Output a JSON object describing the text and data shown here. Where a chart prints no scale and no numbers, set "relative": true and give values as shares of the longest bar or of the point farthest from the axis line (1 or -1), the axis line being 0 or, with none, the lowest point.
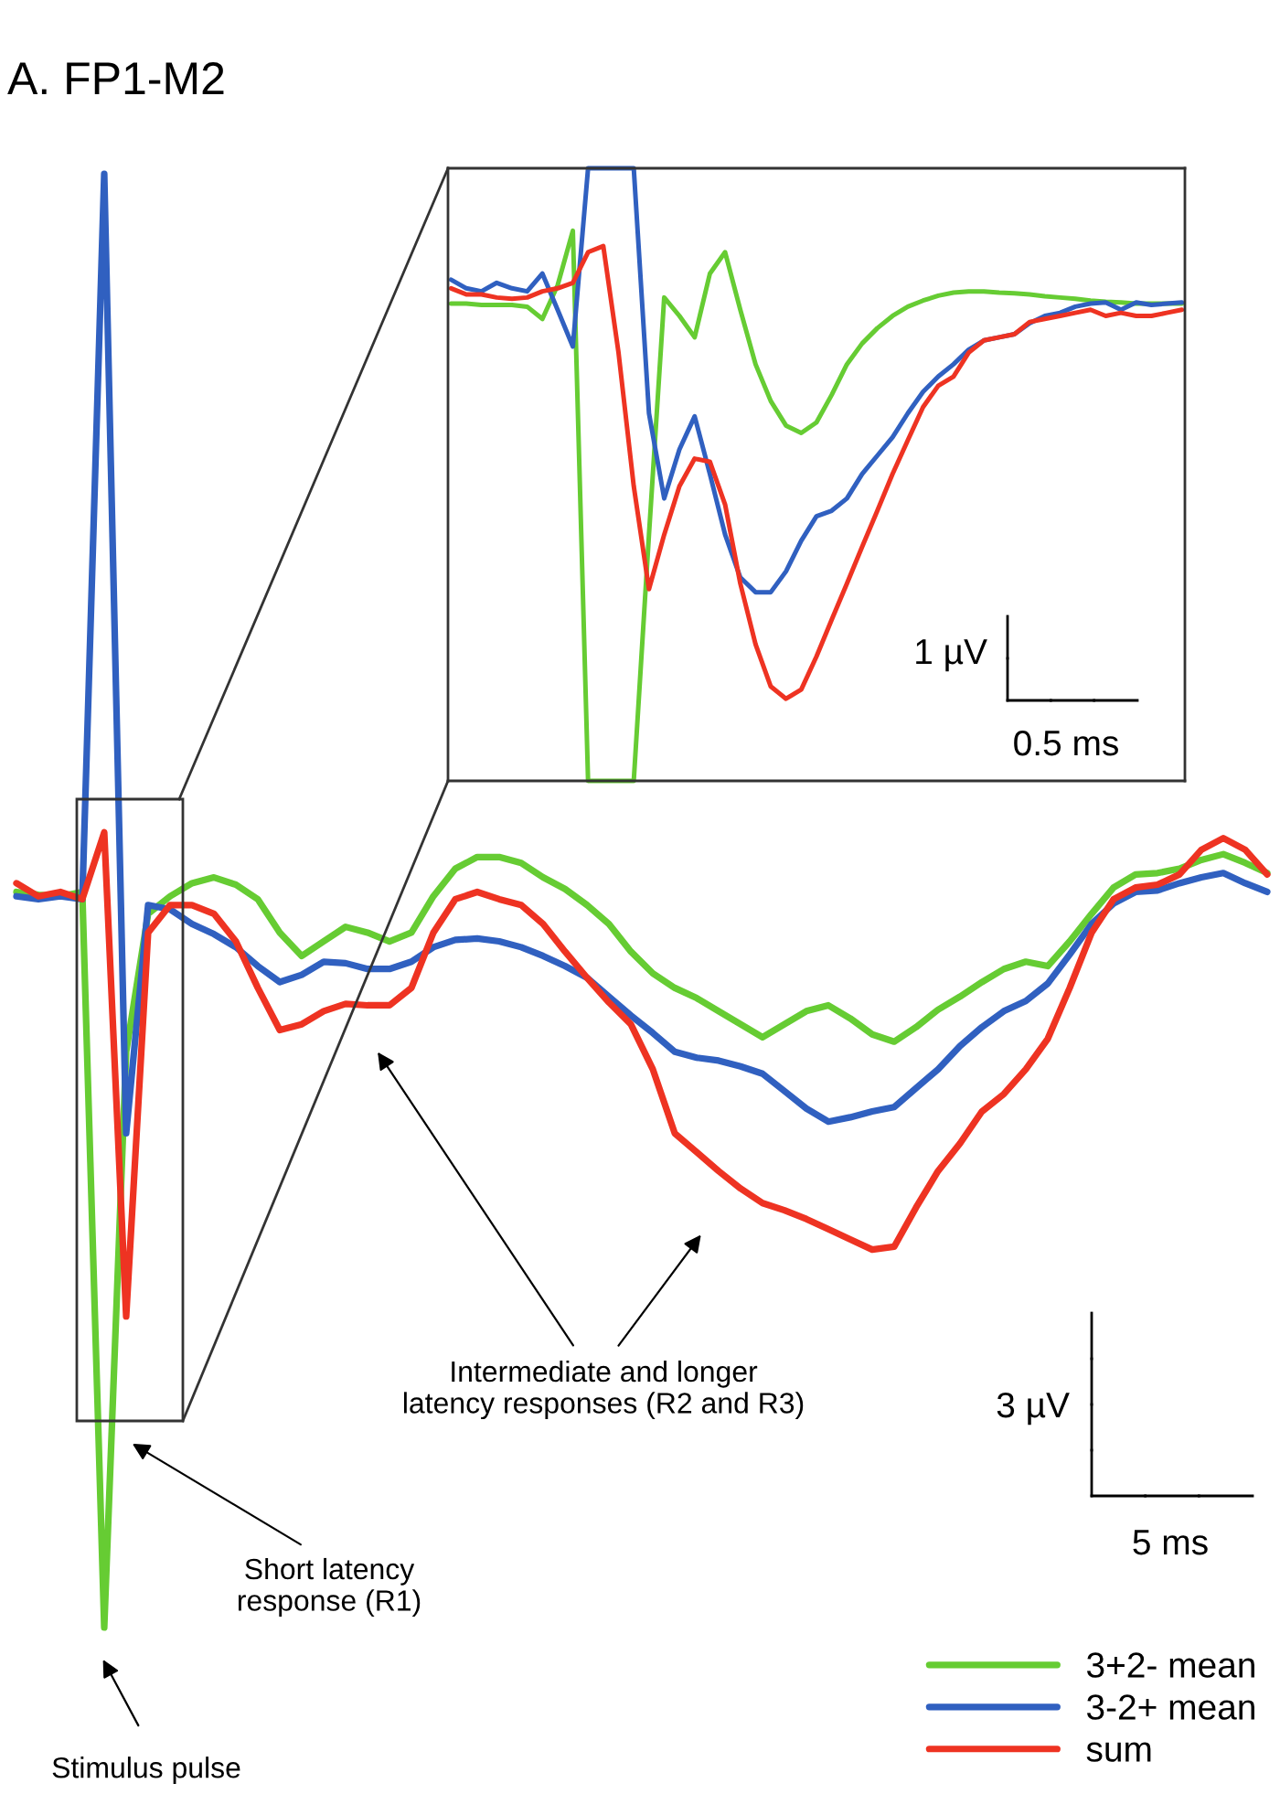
{
  "chart_data": [
    {
      "type": "line",
      "title": "A. FP1-M2",
      "relative": true,
      "legend": "bottom right",
      "line_style": "solid",
      "categories": [
        null,
        null,
        null,
        null,
        null,
        null,
        null,
        null,
        null,
        null,
        null,
        null,
        null,
        null,
        null,
        null,
        null,
        null,
        null,
        null,
        null,
        null,
        null,
        null,
        null,
        null,
        null,
        null,
        null,
        null,
        null,
        null,
        null,
        null,
        null,
        null,
        null,
        null,
        null,
        null,
        null,
        null,
        null,
        null,
        null,
        null,
        null,
        null,
        null,
        null,
        null,
        null,
        null,
        null,
        null,
        null,
        null,
        null
      ],
      "series": [
        {
          "name": "3+2- mean",
          "color": "#66cc33",
          "values": [
            0.506,
            0.504,
            0.503,
            0.506,
            0,
            0.396,
            0.491,
            0.503,
            0.512,
            0.516,
            0.511,
            0.501,
            0.478,
            0.462,
            0.472,
            0.482,
            0.478,
            0.472,
            0.478,
            0.503,
            0.522,
            0.53,
            0.53,
            0.526,
            0.516,
            0.508,
            0.497,
            0.484,
            0.465,
            0.45,
            0.44,
            0.433,
            0.424,
            0.415,
            0.406,
            0.415,
            0.424,
            0.428,
            0.419,
            0.408,
            0.403,
            0.413,
            0.425,
            0.434,
            0.444,
            0.453,
            0.458,
            0.455,
            0.472,
            0.491,
            0.509,
            0.518,
            0.519,
            0.522,
            0.528,
            0.532,
            0.526,
            0.519
          ]
        },
        {
          "name": "3-2+ mean",
          "color": "#3060c0",
          "values": [
            0.503,
            0.501,
            0.503,
            0.501,
            1,
            0.34,
            0.497,
            0.494,
            0.484,
            0.477,
            0.468,
            0.455,
            0.444,
            0.449,
            0.458,
            0.457,
            0.453,
            0.453,
            0.458,
            0.468,
            0.473,
            0.474,
            0.472,
            0.468,
            0.462,
            0.455,
            0.447,
            0.434,
            0.421,
            0.409,
            0.396,
            0.392,
            0.39,
            0.386,
            0.381,
            0.369,
            0.357,
            0.348,
            0.351,
            0.355,
            0.358,
            0.371,
            0.384,
            0.4,
            0.413,
            0.424,
            0.431,
            0.443,
            0.463,
            0.484,
            0.498,
            0.506,
            0.507,
            0.512,
            0.516,
            0.519,
            0.512,
            0.506
          ]
        },
        {
          "name": "sum",
          "color": "#ee3322",
          "values": [
            0.512,
            0.503,
            0.506,
            0.501,
            0.547,
            0.214,
            0.478,
            0.497,
            0.497,
            0.491,
            0.472,
            0.44,
            0.411,
            0.415,
            0.424,
            0.429,
            0.428,
            0.428,
            0.44,
            0.478,
            0.501,
            0.506,
            0.501,
            0.497,
            0.484,
            0.465,
            0.447,
            0.43,
            0.415,
            0.384,
            0.34,
            0.327,
            0.314,
            0.302,
            0.292,
            0.287,
            0.281,
            0.274,
            0.267,
            0.26,
            0.262,
            0.289,
            0.314,
            0.333,
            0.355,
            0.367,
            0.384,
            0.405,
            0.44,
            0.478,
            0.501,
            0.509,
            0.511,
            0.518,
            0.535,
            0.543,
            0.535,
            0.518
          ]
        }
      ],
      "annotations": [
        "Intermediate and longer\nlatency responses (R2 and R3)",
        "Short latency\nresponse (R1)",
        "Stimulus pulse",
        "3 µV",
        "5 ms"
      ]
    },
    {
      "type": "line",
      "relative": true,
      "line_style": "solid",
      "categories": [
        null,
        null,
        null,
        null,
        null,
        null,
        null,
        null,
        null,
        null,
        null,
        null,
        null,
        null,
        null,
        null,
        null,
        null,
        null,
        null,
        null,
        null,
        null,
        null,
        null,
        null,
        null,
        null,
        null,
        null,
        null,
        null,
        null,
        null,
        null,
        null,
        null,
        null,
        null,
        null,
        null,
        null,
        null,
        null,
        null,
        null,
        null,
        null,
        null
      ],
      "series": [
        {
          "color": "#66cc33",
          "values": [
            0.779,
            0.779,
            0.777,
            0.777,
            0.777,
            0.774,
            0.754,
            0.809,
            0.898,
            0,
            0,
            0,
            0,
            0.402,
            0.789,
            0.759,
            0.724,
            0.828,
            0.863,
            0.769,
            0.68,
            0.62,
            0.58,
            0.568,
            0.585,
            0.63,
            0.68,
            0.714,
            0.739,
            0.759,
            0.774,
            0.784,
            0.792,
            0.797,
            0.799,
            0.799,
            0.797,
            0.796,
            0.794,
            0.791,
            0.789,
            0.787,
            0.784,
            0.782,
            0.781,
            0.779,
            0.779,
            0.779,
            0.779
          ]
        },
        {
          "color": "#3060c0",
          "values": [
            0.818,
            0.804,
            0.799,
            0.813,
            0.804,
            0.799,
            0.828,
            0.769,
            0.709,
            1,
            1,
            1,
            1,
            0.6,
            0.461,
            0.541,
            0.595,
            0.501,
            0.402,
            0.332,
            0.308,
            0.308,
            0.342,
            0.392,
            0.432,
            0.441,
            0.461,
            0.501,
            0.531,
            0.561,
            0.6,
            0.635,
            0.66,
            0.68,
            0.704,
            0.719,
            0.724,
            0.729,
            0.747,
            0.759,
            0.764,
            0.774,
            0.779,
            0.781,
            0.769,
            0.781,
            0.777,
            0.779,
            0.781
          ]
        },
        {
          "color": "#ee3322",
          "values": [
            0.804,
            0.794,
            0.794,
            0.789,
            0.787,
            0.789,
            0.799,
            0.804,
            0.813,
            0.863,
            0.873,
            0.699,
            0.481,
            0.313,
            0.402,
            0.481,
            0.526,
            0.521,
            0.451,
            0.322,
            0.223,
            0.154,
            0.134,
            0.149,
            0.203,
            0.263,
            0.322,
            0.382,
            0.441,
            0.501,
            0.556,
            0.61,
            0.645,
            0.66,
            0.699,
            0.719,
            0.724,
            0.729,
            0.749,
            0.754,
            0.759,
            0.764,
            0.769,
            0.759,
            0.764,
            0.759,
            0.759,
            0.764,
            0.769
          ]
        }
      ],
      "annotations": [
        "1 µV",
        "0.5 ms"
      ]
    }
  ]
}
